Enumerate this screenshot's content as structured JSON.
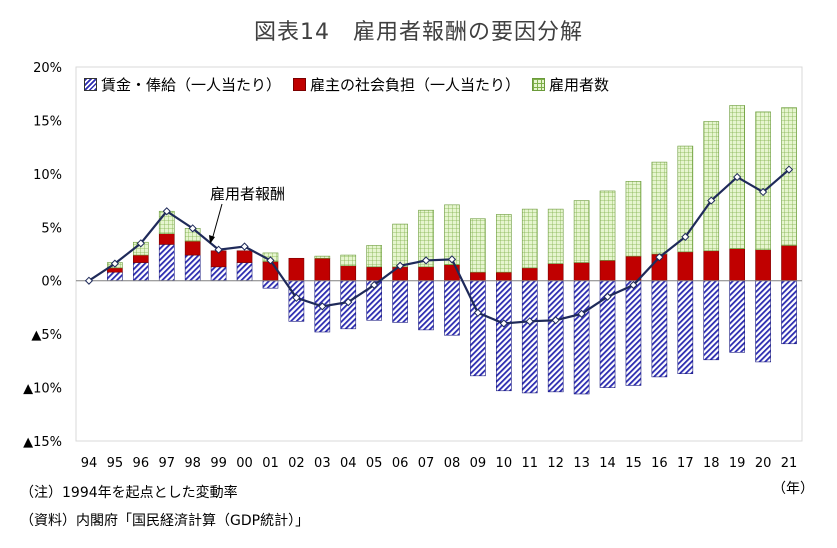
{
  "title": "図表14　雇用者報酬の要因分解",
  "annotation": "雇用者報酬",
  "notes": {
    "note1": "（注）1994年を起点とした変動率",
    "note2": "（資料）内閣府「国民経済計算（GDP統計）」"
  },
  "x_unit": "（年）",
  "chart_data": {
    "type": "bar",
    "categories": [
      "94",
      "95",
      "96",
      "97",
      "98",
      "99",
      "00",
      "01",
      "02",
      "03",
      "04",
      "05",
      "06",
      "07",
      "08",
      "09",
      "10",
      "11",
      "12",
      "13",
      "14",
      "15",
      "16",
      "17",
      "18",
      "19",
      "20",
      "21"
    ],
    "y_ticks": [
      {
        "value": 20,
        "label": "20%"
      },
      {
        "value": 15,
        "label": "15%"
      },
      {
        "value": 10,
        "label": "10%"
      },
      {
        "value": 5,
        "label": "5%"
      },
      {
        "value": 0,
        "label": "0%"
      },
      {
        "value": -5,
        "label": "▲5%"
      },
      {
        "value": -10,
        "label": "▲10%"
      },
      {
        "value": -15,
        "label": "▲15%"
      }
    ],
    "ylim": [
      -15,
      20
    ],
    "grid": false,
    "legend_position": "top-left",
    "series": [
      {
        "name": "賃金・俸給（一人当たり）",
        "kind": "stacked-bar",
        "color": "#2b2bb0",
        "values": [
          0,
          0.8,
          1.7,
          3.4,
          2.4,
          1.3,
          1.7,
          -0.7,
          -3.8,
          -4.8,
          -4.5,
          -3.7,
          -3.9,
          -4.6,
          -5.1,
          -8.9,
          -10.3,
          -10.5,
          -10.4,
          -10.6,
          -10.0,
          -9.8,
          -9.0,
          -8.7,
          -7.4,
          -6.7,
          -7.6,
          -5.9
        ]
      },
      {
        "name": "雇主の社会負担（一人当たり）",
        "kind": "stacked-bar",
        "color": "#c00000",
        "values": [
          0,
          0.4,
          0.7,
          1.0,
          1.3,
          1.5,
          1.1,
          1.8,
          2.1,
          2.1,
          1.4,
          1.3,
          1.3,
          1.3,
          1.5,
          0.8,
          0.8,
          1.2,
          1.6,
          1.7,
          1.9,
          2.3,
          2.5,
          2.7,
          2.8,
          3.0,
          2.9,
          3.3
        ]
      },
      {
        "name": "雇用者数",
        "kind": "stacked-bar",
        "color": "#e6f5cf",
        "values": [
          0,
          0.5,
          1.2,
          2.1,
          1.2,
          0,
          0,
          0.8,
          0,
          0.2,
          1.0,
          2.0,
          4.0,
          5.3,
          5.6,
          5.0,
          5.4,
          5.5,
          5.1,
          5.8,
          6.5,
          7.0,
          8.6,
          9.9,
          12.1,
          13.4,
          12.9,
          12.9
        ]
      },
      {
        "name": "雇用者報酬",
        "kind": "line",
        "color": "#1f2a5a",
        "values": [
          0,
          1.6,
          3.5,
          6.5,
          4.9,
          2.9,
          3.2,
          1.9,
          -1.6,
          -2.4,
          -2.0,
          -0.4,
          1.4,
          1.9,
          2.0,
          -3.0,
          -4.0,
          -3.8,
          -3.7,
          -3.1,
          -1.5,
          -0.4,
          2.2,
          4.1,
          7.5,
          9.7,
          8.3,
          10.4
        ]
      }
    ]
  }
}
